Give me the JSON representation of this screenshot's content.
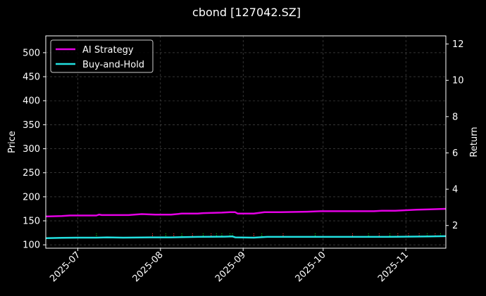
{
  "chart_data": {
    "type": "line",
    "title": "cbond [127042.SZ]",
    "ylabel": "Price",
    "y2label": "Return",
    "ylim": [
      93,
      535
    ],
    "y2lim": [
      0.75,
      12.45
    ],
    "yticks": [
      100,
      150,
      200,
      250,
      300,
      350,
      400,
      450,
      500
    ],
    "y2ticks": [
      2,
      4,
      6,
      8,
      10,
      12
    ],
    "xlim": [
      "2025-06-19",
      "2025-11-16"
    ],
    "xticks": [
      {
        "date": "2025-07-01",
        "label": "2025-07"
      },
      {
        "date": "2025-08-01",
        "label": "2025-08"
      },
      {
        "date": "2025-09-01",
        "label": "2025-09"
      },
      {
        "date": "2025-10-01",
        "label": "2025-10"
      },
      {
        "date": "2025-11-01",
        "label": "2025-11"
      }
    ],
    "grid": true,
    "legend_position": "top-left",
    "background": "#000000",
    "series": [
      {
        "name": "AI Strategy",
        "axis": "y",
        "color": "#e400e4",
        "points": [
          [
            "2025-06-19",
            159
          ],
          [
            "2025-06-25",
            160
          ],
          [
            "2025-06-28",
            161
          ],
          [
            "2025-07-08",
            161
          ],
          [
            "2025-07-09",
            163
          ],
          [
            "2025-07-10",
            162
          ],
          [
            "2025-07-20",
            162
          ],
          [
            "2025-07-25",
            164
          ],
          [
            "2025-07-30",
            163
          ],
          [
            "2025-08-05",
            163
          ],
          [
            "2025-08-09",
            165
          ],
          [
            "2025-08-15",
            165
          ],
          [
            "2025-08-17",
            166
          ],
          [
            "2025-08-24",
            167
          ],
          [
            "2025-08-27",
            168
          ],
          [
            "2025-08-29",
            168
          ],
          [
            "2025-08-30",
            165
          ],
          [
            "2025-09-05",
            165
          ],
          [
            "2025-09-09",
            168
          ],
          [
            "2025-09-15",
            168
          ],
          [
            "2025-09-25",
            169
          ],
          [
            "2025-09-30",
            170
          ],
          [
            "2025-10-15",
            170
          ],
          [
            "2025-10-20",
            170
          ],
          [
            "2025-10-23",
            171
          ],
          [
            "2025-10-28",
            171
          ],
          [
            "2025-11-01",
            172
          ],
          [
            "2025-11-05",
            173
          ],
          [
            "2025-11-10",
            174
          ],
          [
            "2025-11-16",
            175
          ]
        ]
      },
      {
        "name": "Buy-and-Hold",
        "axis": "y",
        "color": "#22e0e0",
        "points": [
          [
            "2025-06-19",
            114
          ],
          [
            "2025-06-25",
            114.5
          ],
          [
            "2025-07-01",
            115
          ],
          [
            "2025-07-08",
            115
          ],
          [
            "2025-07-12",
            115.5
          ],
          [
            "2025-07-18",
            115
          ],
          [
            "2025-07-28",
            115.5
          ],
          [
            "2025-08-05",
            115.5
          ],
          [
            "2025-08-15",
            116.5
          ],
          [
            "2025-08-25",
            117
          ],
          [
            "2025-08-28",
            117.5
          ],
          [
            "2025-08-29",
            115.5
          ],
          [
            "2025-09-05",
            115
          ],
          [
            "2025-09-10",
            116.5
          ],
          [
            "2025-09-20",
            116.5
          ],
          [
            "2025-09-30",
            116.5
          ],
          [
            "2025-10-15",
            116.5
          ],
          [
            "2025-10-25",
            116.5
          ],
          [
            "2025-11-01",
            117
          ],
          [
            "2025-11-10",
            117.5
          ],
          [
            "2025-11-16",
            118
          ]
        ]
      }
    ],
    "trade_markers": [
      {
        "date": "2025-07-08",
        "color": "#00cc00"
      },
      {
        "date": "2025-07-29",
        "color": "#ff3333"
      },
      {
        "date": "2025-08-03",
        "color": "#00cc00"
      },
      {
        "date": "2025-08-06",
        "color": "#ff3333"
      },
      {
        "date": "2025-08-09",
        "color": "#00cc00"
      },
      {
        "date": "2025-08-13",
        "color": "#ff3333"
      },
      {
        "date": "2025-08-17",
        "color": "#00cc00"
      },
      {
        "date": "2025-08-20",
        "color": "#ff3333"
      },
      {
        "date": "2025-08-22",
        "color": "#00cc00"
      },
      {
        "date": "2025-08-24",
        "color": "#00cc00"
      },
      {
        "date": "2025-08-27",
        "color": "#00cc00"
      },
      {
        "date": "2025-08-28",
        "color": "#00cc00"
      },
      {
        "date": "2025-09-05",
        "color": "#ff3333"
      },
      {
        "date": "2025-09-08",
        "color": "#00cc00"
      },
      {
        "date": "2025-09-16",
        "color": "#ff3333"
      },
      {
        "date": "2025-09-28",
        "color": "#00cc00"
      },
      {
        "date": "2025-10-12",
        "color": "#ff3333"
      },
      {
        "date": "2025-10-18",
        "color": "#00cc00"
      },
      {
        "date": "2025-10-22",
        "color": "#ff3333"
      },
      {
        "date": "2025-10-26",
        "color": "#00cc00"
      },
      {
        "date": "2025-10-29",
        "color": "#ff3333"
      },
      {
        "date": "2025-11-02",
        "color": "#ff3333"
      },
      {
        "date": "2025-11-06",
        "color": "#ff3333"
      },
      {
        "date": "2025-11-09",
        "color": "#00cc00"
      },
      {
        "date": "2025-11-12",
        "color": "#ff3333"
      },
      {
        "date": "2025-11-14",
        "color": "#00cc00"
      }
    ]
  }
}
